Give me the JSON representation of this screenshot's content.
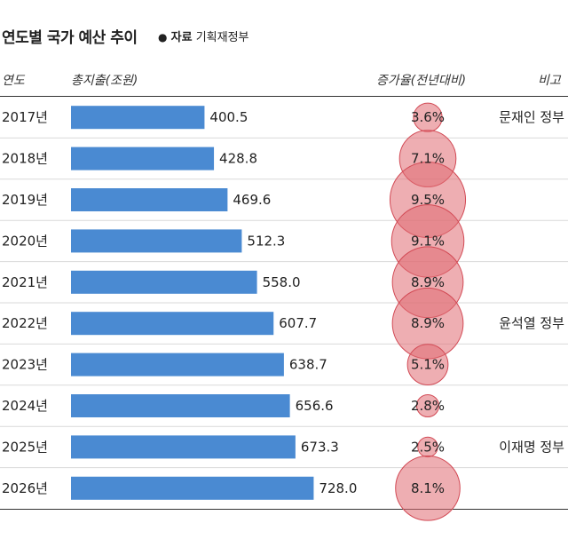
{
  "header": {
    "title": "연도별 국가 예산 추이",
    "source_bullet": "●",
    "source_label": "자료",
    "source_value": "기획재정부"
  },
  "columns": {
    "year": "연도",
    "spend": "총지출(조원)",
    "growth": "증가율(전년대비)",
    "note": "비고"
  },
  "chart_data": {
    "type": "table",
    "title": "연도별 국가 예산 추이",
    "categories": [
      "2017년",
      "2018년",
      "2019년",
      "2020년",
      "2021년",
      "2022년",
      "2023년",
      "2024년",
      "2025년",
      "2026년"
    ],
    "series": [
      {
        "name": "총지출(조원)",
        "values": [
          400.5,
          428.8,
          469.6,
          512.3,
          558.0,
          607.7,
          638.7,
          656.6,
          673.3,
          728.0
        ],
        "labels": [
          "400.5",
          "428.8",
          "469.6",
          "512.3",
          "558.0",
          "607.7",
          "638.7",
          "656.6",
          "673.3",
          "728.0"
        ]
      },
      {
        "name": "증가율(전년대비)",
        "values": [
          3.6,
          7.1,
          9.5,
          9.1,
          8.9,
          8.9,
          5.1,
          2.8,
          2.5,
          8.1
        ],
        "labels": [
          "3.6%",
          "7.1%",
          "9.5%",
          "9.1%",
          "8.9%",
          "8.9%",
          "5.1%",
          "2.8%",
          "2.5%",
          "8.1%"
        ]
      }
    ],
    "notes": [
      "문재인 정부",
      "",
      "",
      "",
      "",
      "윤석열 정부",
      "",
      "",
      "이재명 정부",
      ""
    ],
    "colors": {
      "bar": "#4a8ad2",
      "bubble_fill": "#e06c72",
      "bubble_stroke": "#d24a55"
    }
  }
}
